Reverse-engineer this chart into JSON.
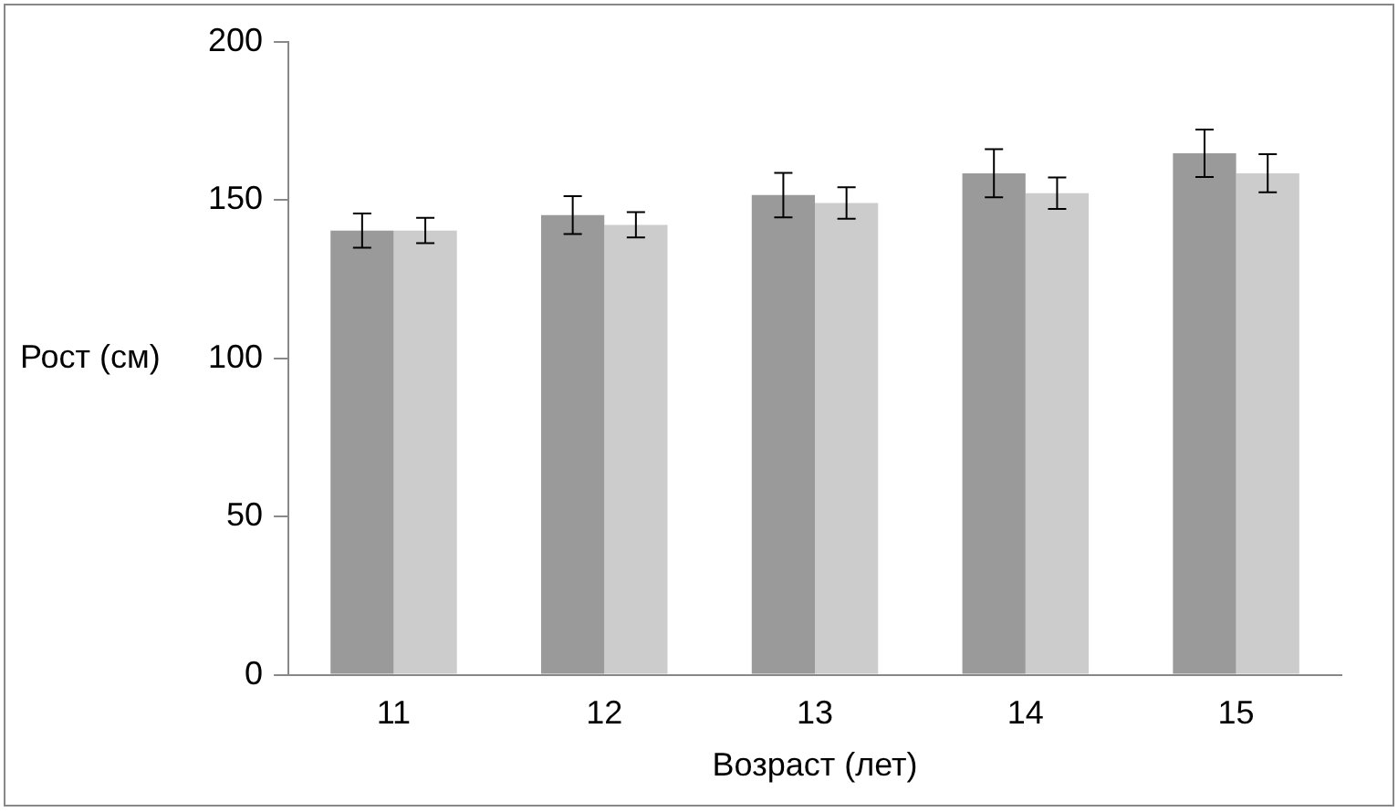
{
  "chart_data": {
    "type": "bar",
    "xlabel": "Возраст (лет)",
    "ylabel": "Рост (см)",
    "categories": [
      "11",
      "12",
      "13",
      "14",
      "15"
    ],
    "series": [
      {
        "color": "#9a9a9a",
        "values": [
          140.4,
          145.3,
          151.6,
          158.5,
          164.8
        ],
        "errors": [
          5.4,
          6,
          7,
          7.6,
          7.5
        ]
      },
      {
        "color": "#cccccc",
        "values": [
          140.4,
          142.2,
          149.1,
          152.2,
          158.5
        ],
        "errors": [
          4,
          4,
          5,
          5,
          6
        ]
      }
    ],
    "ylim": [
      0,
      200
    ],
    "yticks": [
      0,
      50,
      100,
      150,
      200
    ],
    "grid": false,
    "legend": false
  }
}
